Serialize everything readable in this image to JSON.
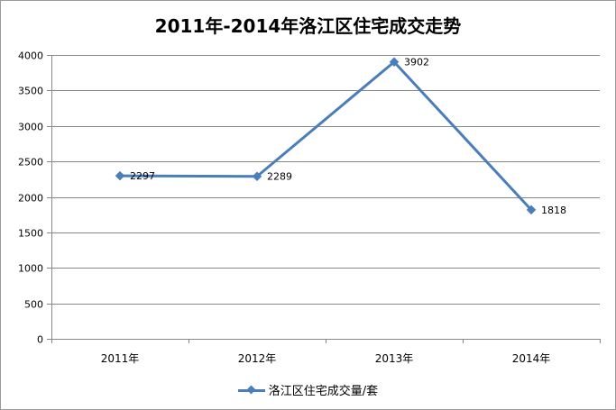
{
  "title": "2011年-2014年洛江区住宅成交走势",
  "colors": {
    "series": "#4a7ebb",
    "grid": "#888888",
    "axis": "#888888"
  },
  "legend": {
    "label": "洛江区住宅成交量/套",
    "position": "bottom"
  },
  "chart_data": {
    "type": "line",
    "title": "2011年-2014年洛江区住宅成交走势",
    "categories": [
      "2011年",
      "2012年",
      "2013年",
      "2014年"
    ],
    "series": [
      {
        "name": "洛江区住宅成交量/套",
        "values": [
          2297,
          2289,
          3902,
          1818
        ],
        "color": "#4a7ebb",
        "marker": "diamond"
      }
    ],
    "data_labels": [
      "2297",
      "2289",
      "3902",
      "1818"
    ],
    "yticks": [
      "0",
      "500",
      "1000",
      "1500",
      "2000",
      "2500",
      "3000",
      "3500",
      "4000"
    ],
    "ylim": [
      0,
      4000
    ],
    "grid": true,
    "legend_position": "bottom"
  }
}
